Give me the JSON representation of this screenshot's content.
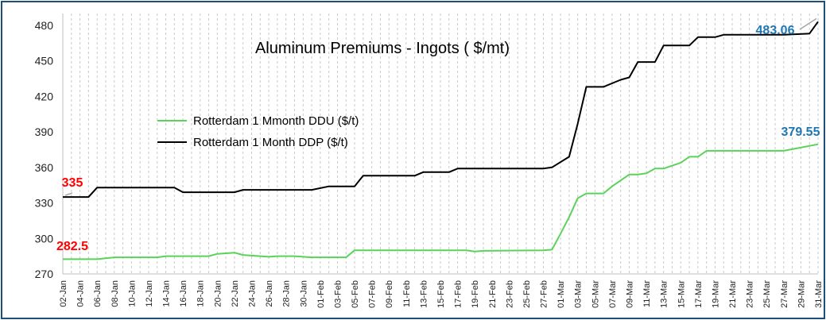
{
  "chart_data": {
    "type": "line",
    "title": "Aluminum Premiums - Ingots ( $/mt)",
    "xlabel": "",
    "ylabel": "",
    "ylim": [
      270,
      490
    ],
    "yticks": [
      270,
      300,
      330,
      360,
      390,
      420,
      450,
      480
    ],
    "grid": "vertical dashed",
    "legend_position": "upper-left",
    "categories": [
      "02-Jan",
      "03-Jan",
      "04-Jan",
      "05-Jan",
      "06-Jan",
      "07-Jan",
      "08-Jan",
      "09-Jan",
      "10-Jan",
      "11-Jan",
      "12-Jan",
      "13-Jan",
      "14-Jan",
      "15-Jan",
      "16-Jan",
      "17-Jan",
      "18-Jan",
      "19-Jan",
      "20-Jan",
      "21-Jan",
      "22-Jan",
      "23-Jan",
      "24-Jan",
      "25-Jan",
      "26-Jan",
      "27-Jan",
      "28-Jan",
      "29-Jan",
      "30-Jan",
      "31-Jan",
      "01-Feb",
      "02-Feb",
      "03-Feb",
      "04-Feb",
      "05-Feb",
      "06-Feb",
      "07-Feb",
      "08-Feb",
      "09-Feb",
      "10-Feb",
      "11-Feb",
      "12-Feb",
      "13-Feb",
      "14-Feb",
      "15-Feb",
      "16-Feb",
      "17-Feb",
      "18-Feb",
      "19-Feb",
      "20-Feb",
      "21-Feb",
      "22-Feb",
      "23-Feb",
      "24-Feb",
      "25-Feb",
      "26-Feb",
      "27-Feb",
      "28-Feb",
      "01-Mar",
      "02-Mar",
      "03-Mar",
      "04-Mar",
      "05-Mar",
      "06-Mar",
      "07-Mar",
      "08-Mar",
      "09-Mar",
      "10-Mar",
      "11-Mar",
      "12-Mar",
      "13-Mar",
      "14-Mar",
      "15-Mar",
      "16-Mar",
      "17-Mar",
      "18-Mar",
      "19-Mar",
      "20-Mar",
      "21-Mar",
      "22-Mar",
      "23-Mar",
      "24-Mar",
      "25-Mar",
      "26-Mar",
      "27-Mar",
      "28-Mar",
      "29-Mar",
      "30-Mar",
      "31-Mar"
    ],
    "tick_labels": [
      "02-Jan",
      "04-Jan",
      "06-Jan",
      "08-Jan",
      "10-Jan",
      "12-Jan",
      "14-Jan",
      "16-Jan",
      "18-Jan",
      "20-Jan",
      "22-Jan",
      "24-Jan",
      "26-Jan",
      "28-Jan",
      "30-Jan",
      "01-Feb",
      "03-Feb",
      "05-Feb",
      "07-Feb",
      "09-Feb",
      "11-Feb",
      "13-Feb",
      "15-Feb",
      "17-Feb",
      "19-Feb",
      "21-Feb",
      "23-Feb",
      "25-Feb",
      "27-Feb",
      "01-Mar",
      "03-Mar",
      "05-Mar",
      "07-Mar",
      "09-Mar",
      "11-Mar",
      "13-Mar",
      "15-Mar",
      "17-Mar",
      "19-Mar",
      "21-Mar",
      "23-Mar",
      "25-Mar",
      "27-Mar",
      "29-Mar",
      "31-Mar"
    ],
    "series": [
      {
        "name": "Rotterdam 1 Mmonth DDU ($/t)",
        "color": "#5ad35a",
        "points": [
          [
            "02-Jan",
            282.5
          ],
          [
            "06-Jan",
            282.5
          ],
          [
            "08-Jan",
            284
          ],
          [
            "13-Jan",
            284
          ],
          [
            "14-Jan",
            285
          ],
          [
            "19-Jan",
            285
          ],
          [
            "20-Jan",
            287
          ],
          [
            "22-Jan",
            288
          ],
          [
            "23-Jan",
            286
          ],
          [
            "26-Jan",
            284.5
          ],
          [
            "27-Jan",
            285
          ],
          [
            "29-Jan",
            285
          ],
          [
            "31-Jan",
            284
          ],
          [
            "03-Feb",
            284
          ],
          [
            "04-Feb",
            284
          ],
          [
            "05-Feb",
            290
          ],
          [
            "18-Feb",
            290
          ],
          [
            "19-Feb",
            289
          ],
          [
            "20-Feb",
            289.5
          ],
          [
            "27-Feb",
            290
          ],
          [
            "28-Feb",
            290.5
          ],
          [
            "01-Mar",
            304
          ],
          [
            "02-Mar",
            318
          ],
          [
            "03-Mar",
            334
          ],
          [
            "04-Mar",
            338
          ],
          [
            "06-Mar",
            338
          ],
          [
            "07-Mar",
            344
          ],
          [
            "09-Mar",
            354
          ],
          [
            "10-Mar",
            354
          ],
          [
            "11-Mar",
            355
          ],
          [
            "12-Mar",
            359
          ],
          [
            "13-Mar",
            359
          ],
          [
            "15-Mar",
            364
          ],
          [
            "16-Mar",
            369
          ],
          [
            "17-Mar",
            369
          ],
          [
            "18-Mar",
            374
          ],
          [
            "27-Mar",
            374
          ],
          [
            "31-Mar",
            379.55
          ]
        ]
      },
      {
        "name": "Rotterdam 1 Month DDP ($/t)",
        "color": "#000000",
        "points": [
          [
            "02-Jan",
            335
          ],
          [
            "04-Jan",
            335
          ],
          [
            "05-Jan",
            335
          ],
          [
            "06-Jan",
            343
          ],
          [
            "14-Jan",
            343
          ],
          [
            "15-Jan",
            343
          ],
          [
            "16-Jan",
            339
          ],
          [
            "22-Jan",
            339
          ],
          [
            "23-Jan",
            341
          ],
          [
            "31-Jan",
            341
          ],
          [
            "02-Feb",
            344
          ],
          [
            "03-Feb",
            344
          ],
          [
            "04-Feb",
            344
          ],
          [
            "05-Feb",
            344
          ],
          [
            "06-Feb",
            353
          ],
          [
            "11-Feb",
            353
          ],
          [
            "12-Feb",
            353
          ],
          [
            "13-Feb",
            356
          ],
          [
            "15-Feb",
            356
          ],
          [
            "16-Feb",
            356
          ],
          [
            "17-Feb",
            359
          ],
          [
            "27-Feb",
            359
          ],
          [
            "28-Feb",
            360
          ],
          [
            "02-Mar",
            369
          ],
          [
            "03-Mar",
            397
          ],
          [
            "04-Mar",
            428
          ],
          [
            "06-Mar",
            428
          ],
          [
            "08-Mar",
            434
          ],
          [
            "09-Mar",
            436
          ],
          [
            "10-Mar",
            449
          ],
          [
            "11-Mar",
            449
          ],
          [
            "12-Mar",
            449
          ],
          [
            "13-Mar",
            463
          ],
          [
            "16-Mar",
            463
          ],
          [
            "17-Mar",
            470
          ],
          [
            "19-Mar",
            470
          ],
          [
            "20-Mar",
            472
          ],
          [
            "27-Mar",
            472
          ],
          [
            "30-Mar",
            473
          ],
          [
            "31-Mar",
            483.06
          ]
        ]
      }
    ],
    "data_labels": [
      {
        "text": "335",
        "color": "#ff0000"
      },
      {
        "text": "282.5",
        "color": "#ff0000"
      },
      {
        "text": "483.06",
        "color": "#1f77b4"
      },
      {
        "text": "379.55",
        "color": "#1f77b4"
      }
    ]
  }
}
